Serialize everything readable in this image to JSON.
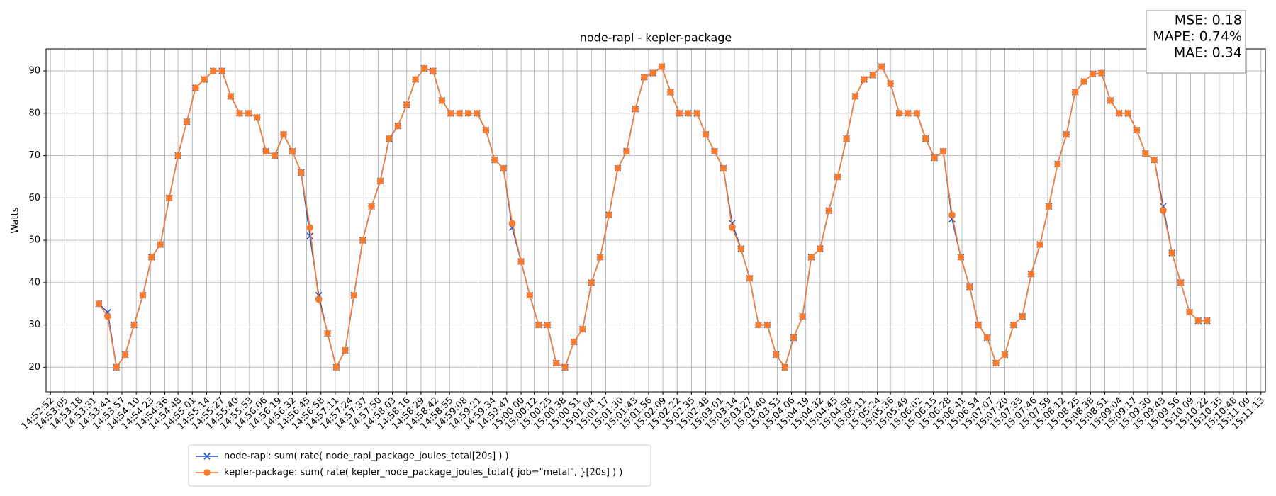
{
  "chart_data": {
    "type": "line",
    "title": "node-rapl - kepler-package",
    "y_label": "Watts",
    "annotations": [
      "MSE: 0.18",
      "MAPE: 0.74%",
      "MAE: 0.34"
    ],
    "grid": true,
    "legend": "below",
    "ylim": [
      14.2,
      95.2
    ],
    "yticks": [
      20,
      30,
      40,
      50,
      60,
      70,
      80,
      90
    ],
    "xlim": [
      "14:52:48",
      "15:11:17"
    ],
    "xticks": [
      "14:52:52",
      "14:53:05",
      "14:53:18",
      "14:53:31",
      "14:53:44",
      "14:53:57",
      "14:54:10",
      "14:54:23",
      "14:54:36",
      "14:54:48",
      "14:55:01",
      "14:55:14",
      "14:55:27",
      "14:55:40",
      "14:55:53",
      "14:56:06",
      "14:56:19",
      "14:56:32",
      "14:56:45",
      "14:56:58",
      "14:57:11",
      "14:57:24",
      "14:57:37",
      "14:57:50",
      "14:58:03",
      "14:58:16",
      "14:58:29",
      "14:58:42",
      "14:58:55",
      "14:59:08",
      "14:59:21",
      "14:59:34",
      "14:59:47",
      "15:00:00",
      "15:00:12",
      "15:00:25",
      "15:00:38",
      "15:00:51",
      "15:01:04",
      "15:01:17",
      "15:01:30",
      "15:01:43",
      "15:01:56",
      "15:02:09",
      "15:02:22",
      "15:02:35",
      "15:02:48",
      "15:03:01",
      "15:03:14",
      "15:03:27",
      "15:03:40",
      "15:03:53",
      "15:04:06",
      "15:04:19",
      "15:04:32",
      "15:04:45",
      "15:04:58",
      "15:05:11",
      "15:05:24",
      "15:05:36",
      "15:05:49",
      "15:06:02",
      "15:06:15",
      "15:06:28",
      "15:06:41",
      "15:06:54",
      "15:07:07",
      "15:07:20",
      "15:07:33",
      "15:07:46",
      "15:07:59",
      "15:08:12",
      "15:08:25",
      "15:08:38",
      "15:08:51",
      "15:09:04",
      "15:09:17",
      "15:09:30",
      "15:09:43",
      "15:09:56",
      "15:10:09",
      "15:10:22",
      "15:10:35",
      "15:10:48",
      "15:11:00",
      "15:11:13"
    ],
    "x": [
      "14:53:36",
      "14:53:44",
      "14:53:52",
      "14:54:00",
      "14:54:08",
      "14:54:16",
      "14:54:24",
      "14:54:32",
      "14:54:40",
      "14:54:48",
      "14:54:56",
      "14:55:04",
      "14:55:12",
      "14:55:20",
      "14:55:28",
      "14:55:36",
      "14:55:44",
      "14:55:52",
      "14:56:00",
      "14:56:08",
      "14:56:16",
      "14:56:24",
      "14:56:32",
      "14:56:40",
      "14:56:48",
      "14:56:56",
      "14:57:04",
      "14:57:12",
      "14:57:20",
      "14:57:28",
      "14:57:36",
      "14:57:44",
      "14:57:52",
      "14:58:00",
      "14:58:08",
      "14:58:16",
      "14:58:24",
      "14:58:32",
      "14:58:40",
      "14:58:48",
      "14:58:56",
      "14:59:04",
      "14:59:12",
      "14:59:20",
      "14:59:28",
      "14:59:36",
      "14:59:44",
      "14:59:52",
      "15:00:00",
      "15:00:08",
      "15:00:16",
      "15:00:24",
      "15:00:32",
      "15:00:40",
      "15:00:48",
      "15:00:56",
      "15:01:04",
      "15:01:12",
      "15:01:20",
      "15:01:28",
      "15:01:36",
      "15:01:44",
      "15:01:52",
      "15:02:00",
      "15:02:08",
      "15:02:16",
      "15:02:24",
      "15:02:32",
      "15:02:40",
      "15:02:48",
      "15:02:56",
      "15:03:04",
      "15:03:12",
      "15:03:20",
      "15:03:28",
      "15:03:36",
      "15:03:44",
      "15:03:52",
      "15:04:00",
      "15:04:08",
      "15:04:16",
      "15:04:24",
      "15:04:32",
      "15:04:40",
      "15:04:48",
      "15:04:56",
      "15:05:04",
      "15:05:12",
      "15:05:20",
      "15:05:28",
      "15:05:36",
      "15:05:44",
      "15:05:52",
      "15:06:00",
      "15:06:08",
      "15:06:16",
      "15:06:24",
      "15:06:32",
      "15:06:40",
      "15:06:48",
      "15:06:56",
      "15:07:04",
      "15:07:12",
      "15:07:20",
      "15:07:28",
      "15:07:36",
      "15:07:44",
      "15:07:52",
      "15:08:00",
      "15:08:08",
      "15:08:16",
      "15:08:24",
      "15:08:32",
      "15:08:40",
      "15:08:48",
      "15:08:56",
      "15:09:04",
      "15:09:12",
      "15:09:20",
      "15:09:28",
      "15:09:36",
      "15:09:44",
      "15:09:52",
      "15:10:00",
      "15:10:08",
      "15:10:16",
      "15:10:24"
    ],
    "series": [
      {
        "name": "node-rapl: sum( rate( node_rapl_package_joules_total[20s] ) )",
        "color": "#1f4fc4",
        "marker": "x",
        "values": [
          35,
          33,
          20,
          23,
          30,
          37,
          46,
          49,
          60,
          70,
          78,
          86,
          88,
          90,
          90,
          84,
          80,
          80,
          79,
          71,
          70,
          75,
          71,
          66,
          51,
          37,
          28,
          20,
          24,
          37,
          50,
          58,
          64,
          74,
          77,
          82,
          88,
          90.6,
          90,
          83,
          80,
          80,
          80,
          80,
          76,
          69,
          67,
          53,
          45,
          37,
          30,
          30,
          21,
          20,
          26,
          29,
          40,
          46,
          56,
          67,
          71,
          81,
          88.5,
          89.5,
          91,
          85,
          80,
          80,
          80,
          75,
          71,
          67,
          54,
          48,
          41,
          30,
          30,
          23,
          20,
          27,
          32,
          46,
          48,
          57,
          65,
          74,
          84,
          88,
          89,
          91,
          87,
          80,
          80,
          80,
          74,
          69.5,
          71,
          55,
          46,
          39,
          30,
          27,
          21,
          23,
          30,
          32,
          42,
          49,
          58,
          68,
          75,
          85,
          87.5,
          89.3,
          89.5,
          83,
          80,
          80,
          76,
          70.5,
          69,
          58,
          47,
          40,
          33,
          31,
          31
        ]
      },
      {
        "name": "kepler-package: sum( rate( kepler_node_package_joules_total{ job=\"metal\", }[20s] ) )",
        "color": "#f97c2e",
        "marker": "o",
        "values": [
          35,
          32,
          20,
          23,
          30,
          37,
          46,
          49,
          60,
          70,
          78,
          86,
          88,
          90,
          90,
          84,
          80,
          80,
          79,
          71,
          70,
          75,
          71,
          66,
          53,
          36,
          28,
          20,
          24,
          37,
          50,
          58,
          64,
          74,
          77,
          82,
          88,
          90.6,
          90,
          83,
          80,
          80,
          80,
          80,
          76,
          69,
          67,
          54,
          45,
          37,
          30,
          30,
          21,
          20,
          26,
          29,
          40,
          46,
          56,
          67,
          71,
          81,
          88.5,
          89.5,
          91,
          85,
          80,
          80,
          80,
          75,
          71,
          67,
          53,
          48,
          41,
          30,
          30,
          23,
          20,
          27,
          32,
          46,
          48,
          57,
          65,
          74,
          84,
          88,
          89,
          91,
          87,
          80,
          80,
          80,
          74,
          69.5,
          71,
          56,
          46,
          39,
          30,
          27,
          21,
          23,
          30,
          32,
          42,
          49,
          58,
          68,
          75,
          85,
          87.5,
          89.3,
          89.5,
          83,
          80,
          80,
          76,
          70.5,
          69,
          57,
          47,
          40,
          33,
          31,
          31
        ]
      }
    ]
  }
}
